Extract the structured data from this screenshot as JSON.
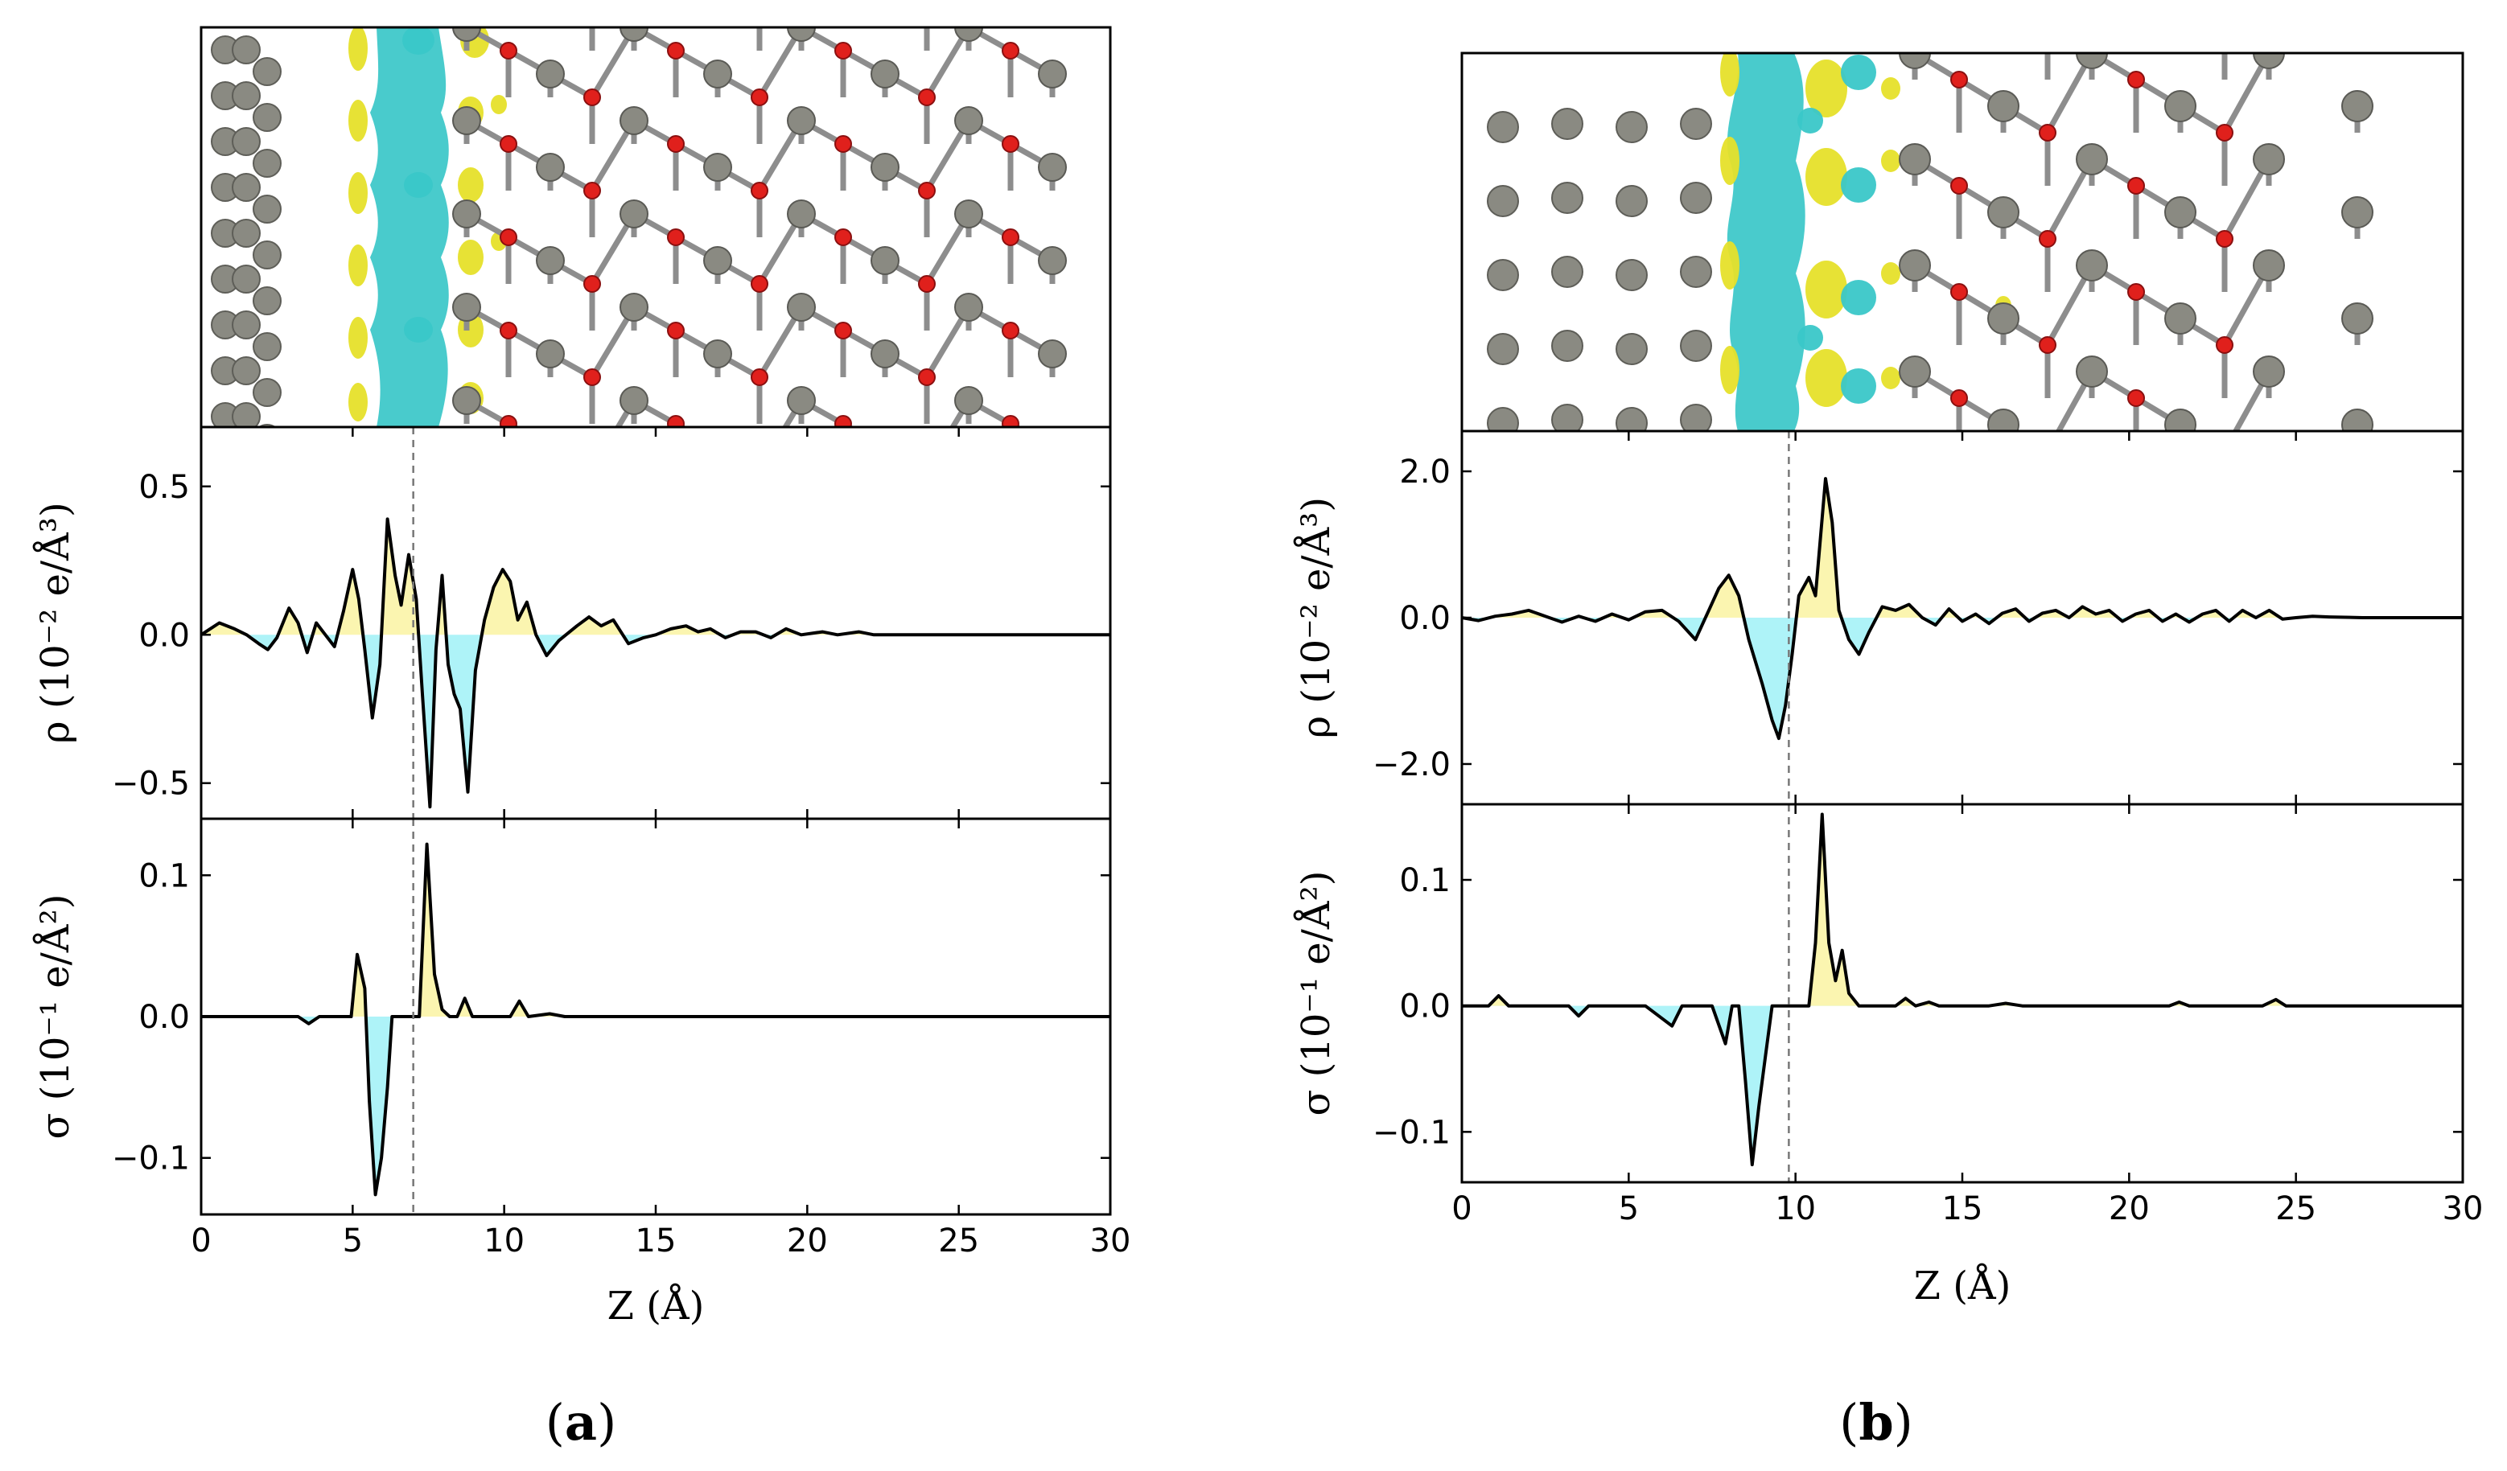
{
  "figure": {
    "panel_labels": [
      {
        "prefix": "(",
        "letter": "a",
        "suffix": ")"
      },
      {
        "prefix": "(",
        "letter": "b",
        "suffix": ")"
      }
    ]
  },
  "colors": {
    "line": "#000000",
    "positive_fill": "#fbf5b0",
    "negative_fill": "#aef3f8",
    "isosurface_cyan": "#3ac7c8",
    "isosurface_yellow": "#e6e02a",
    "atom_gray": "#8a8a82",
    "atom_red": "#e0201c",
    "bond_gray": "#8d8d8d",
    "dashed_line": "#777777"
  },
  "chart_data": [
    {
      "id": "a-rho",
      "type": "area",
      "panel": "a",
      "xlabel": "Z (Å)",
      "ylabel": "ρ (10⁻² e/Å³)",
      "xlim": [
        0,
        30
      ],
      "ylim": [
        -0.62,
        0.7
      ],
      "xticks": [
        0,
        5,
        10,
        15,
        20,
        25,
        30
      ],
      "yticks": [
        0.5,
        0.0,
        -0.5
      ],
      "ytick_labels": [
        "0.5",
        "0.0",
        "−0.5"
      ],
      "interface_z": 7.0,
      "points": [
        [
          0,
          0.0
        ],
        [
          0.6,
          0.04
        ],
        [
          1.1,
          0.02
        ],
        [
          1.5,
          0.0
        ],
        [
          1.9,
          -0.03
        ],
        [
          2.2,
          -0.05
        ],
        [
          2.5,
          -0.01
        ],
        [
          2.9,
          0.09
        ],
        [
          3.2,
          0.04
        ],
        [
          3.5,
          -0.06
        ],
        [
          3.8,
          0.04
        ],
        [
          4.1,
          0.0
        ],
        [
          4.4,
          -0.04
        ],
        [
          4.7,
          0.08
        ],
        [
          5.0,
          0.22
        ],
        [
          5.2,
          0.12
        ],
        [
          5.4,
          -0.05
        ],
        [
          5.65,
          -0.28
        ],
        [
          5.9,
          -0.1
        ],
        [
          6.15,
          0.39
        ],
        [
          6.4,
          0.2
        ],
        [
          6.6,
          0.1
        ],
        [
          6.85,
          0.27
        ],
        [
          7.1,
          0.12
        ],
        [
          7.3,
          -0.2
        ],
        [
          7.55,
          -0.58
        ],
        [
          7.75,
          -0.05
        ],
        [
          7.95,
          0.2
        ],
        [
          8.15,
          -0.1
        ],
        [
          8.35,
          -0.2
        ],
        [
          8.55,
          -0.25
        ],
        [
          8.8,
          -0.53
        ],
        [
          9.05,
          -0.12
        ],
        [
          9.35,
          0.05
        ],
        [
          9.65,
          0.16
        ],
        [
          9.95,
          0.22
        ],
        [
          10.2,
          0.18
        ],
        [
          10.45,
          0.05
        ],
        [
          10.75,
          0.11
        ],
        [
          11.05,
          0.0
        ],
        [
          11.4,
          -0.07
        ],
        [
          11.8,
          -0.02
        ],
        [
          12.4,
          0.03
        ],
        [
          12.8,
          0.06
        ],
        [
          13.2,
          0.03
        ],
        [
          13.6,
          0.05
        ],
        [
          14.1,
          -0.03
        ],
        [
          14.6,
          -0.01
        ],
        [
          15.0,
          0.0
        ],
        [
          15.5,
          0.02
        ],
        [
          16.0,
          0.03
        ],
        [
          16.4,
          0.01
        ],
        [
          16.8,
          0.02
        ],
        [
          17.3,
          -0.01
        ],
        [
          17.8,
          0.01
        ],
        [
          18.3,
          0.01
        ],
        [
          18.8,
          -0.01
        ],
        [
          19.3,
          0.02
        ],
        [
          19.8,
          0.0
        ],
        [
          20.5,
          0.01
        ],
        [
          21.0,
          0.0
        ],
        [
          21.7,
          0.01
        ],
        [
          22.2,
          0.0
        ],
        [
          23.0,
          0.0
        ],
        [
          24.0,
          0.0
        ],
        [
          25.0,
          0.0
        ],
        [
          26.0,
          0.0
        ],
        [
          27.0,
          0.0
        ],
        [
          28.0,
          0.0
        ],
        [
          29.0,
          0.0
        ],
        [
          30.0,
          0.0
        ]
      ]
    },
    {
      "id": "a-sigma",
      "type": "area",
      "panel": "a",
      "xlabel": "Z (Å)",
      "ylabel": "σ (10⁻¹ e/Å²)",
      "xlim": [
        0,
        30
      ],
      "ylim": [
        -0.14,
        0.14
      ],
      "xticks": [
        0,
        5,
        10,
        15,
        20,
        25,
        30
      ],
      "xtick_labels": [
        "0",
        "5",
        "10",
        "15",
        "20",
        "25",
        "30"
      ],
      "yticks": [
        0.1,
        0.0,
        -0.1
      ],
      "ytick_labels": [
        "0.1",
        "0.0",
        "−0.1"
      ],
      "interface_z": 7.0,
      "points": [
        [
          0,
          0.0
        ],
        [
          1.0,
          0.0
        ],
        [
          2.0,
          0.0
        ],
        [
          3.2,
          0.0
        ],
        [
          3.55,
          -0.005
        ],
        [
          3.9,
          0.0
        ],
        [
          4.6,
          0.0
        ],
        [
          4.95,
          0.0
        ],
        [
          5.15,
          0.044
        ],
        [
          5.4,
          0.02
        ],
        [
          5.55,
          -0.06
        ],
        [
          5.75,
          -0.126
        ],
        [
          5.95,
          -0.1
        ],
        [
          6.15,
          -0.05
        ],
        [
          6.3,
          0.0
        ],
        [
          7.0,
          0.0
        ],
        [
          7.2,
          0.0
        ],
        [
          7.45,
          0.122
        ],
        [
          7.7,
          0.03
        ],
        [
          7.95,
          0.005
        ],
        [
          8.2,
          0.0
        ],
        [
          8.45,
          0.0
        ],
        [
          8.7,
          0.013
        ],
        [
          8.95,
          0.0
        ],
        [
          10.2,
          0.0
        ],
        [
          10.5,
          0.011
        ],
        [
          10.8,
          0.0
        ],
        [
          11.5,
          0.002
        ],
        [
          12.0,
          0.0
        ],
        [
          30,
          0.0
        ]
      ]
    },
    {
      "id": "b-rho",
      "type": "area",
      "panel": "b",
      "xlabel": "Z (Å)",
      "ylabel": "ρ (10⁻² e/Å³)",
      "xlim": [
        0,
        30
      ],
      "ylim": [
        -2.55,
        2.55
      ],
      "xticks": [
        0,
        5,
        10,
        15,
        20,
        25,
        30
      ],
      "yticks": [
        2.0,
        0.0,
        -2.0
      ],
      "ytick_labels": [
        "2.0",
        "0.0",
        "−2.0"
      ],
      "interface_z": 9.8,
      "points": [
        [
          0,
          0.0
        ],
        [
          0.5,
          -0.04
        ],
        [
          1.0,
          0.02
        ],
        [
          1.5,
          0.05
        ],
        [
          2.0,
          0.1
        ],
        [
          2.5,
          0.02
        ],
        [
          3.0,
          -0.06
        ],
        [
          3.5,
          0.02
        ],
        [
          4.0,
          -0.05
        ],
        [
          4.5,
          0.05
        ],
        [
          5.0,
          -0.03
        ],
        [
          5.5,
          0.08
        ],
        [
          6.0,
          0.1
        ],
        [
          6.5,
          -0.05
        ],
        [
          7.0,
          -0.3
        ],
        [
          7.4,
          0.1
        ],
        [
          7.7,
          0.4
        ],
        [
          8.0,
          0.58
        ],
        [
          8.3,
          0.3
        ],
        [
          8.6,
          -0.3
        ],
        [
          9.0,
          -0.9
        ],
        [
          9.3,
          -1.4
        ],
        [
          9.5,
          -1.65
        ],
        [
          9.7,
          -1.2
        ],
        [
          9.9,
          -0.5
        ],
        [
          10.1,
          0.3
        ],
        [
          10.4,
          0.55
        ],
        [
          10.6,
          0.3
        ],
        [
          10.9,
          1.9
        ],
        [
          11.1,
          1.3
        ],
        [
          11.3,
          0.1
        ],
        [
          11.6,
          -0.3
        ],
        [
          11.9,
          -0.5
        ],
        [
          12.2,
          -0.2
        ],
        [
          12.6,
          0.15
        ],
        [
          13.0,
          0.1
        ],
        [
          13.4,
          0.18
        ],
        [
          13.8,
          0.0
        ],
        [
          14.2,
          -0.1
        ],
        [
          14.6,
          0.12
        ],
        [
          15.0,
          -0.05
        ],
        [
          15.4,
          0.05
        ],
        [
          15.8,
          -0.08
        ],
        [
          16.2,
          0.06
        ],
        [
          16.6,
          0.12
        ],
        [
          17.0,
          -0.05
        ],
        [
          17.4,
          0.06
        ],
        [
          17.8,
          0.1
        ],
        [
          18.2,
          0.0
        ],
        [
          18.6,
          0.15
        ],
        [
          19.0,
          0.05
        ],
        [
          19.4,
          0.1
        ],
        [
          19.8,
          -0.05
        ],
        [
          20.2,
          0.05
        ],
        [
          20.6,
          0.1
        ],
        [
          21.0,
          -0.05
        ],
        [
          21.4,
          0.05
        ],
        [
          21.8,
          -0.06
        ],
        [
          22.2,
          0.05
        ],
        [
          22.6,
          0.1
        ],
        [
          23.0,
          -0.05
        ],
        [
          23.4,
          0.1
        ],
        [
          23.8,
          0.0
        ],
        [
          24.2,
          0.1
        ],
        [
          24.6,
          -0.02
        ],
        [
          25.0,
          0.0
        ],
        [
          25.5,
          0.02
        ],
        [
          26.0,
          0.01
        ],
        [
          27.0,
          0.0
        ],
        [
          28.0,
          0.0
        ],
        [
          29.0,
          0.0
        ],
        [
          30.0,
          0.0
        ]
      ]
    },
    {
      "id": "b-sigma",
      "type": "area",
      "panel": "b",
      "xlabel": "Z (Å)",
      "ylabel": "σ (10⁻¹ e/Å²)",
      "xlim": [
        0,
        30
      ],
      "ylim": [
        -0.14,
        0.16
      ],
      "xticks": [
        0,
        5,
        10,
        15,
        20,
        25,
        30
      ],
      "xtick_labels": [
        "0",
        "5",
        "10",
        "15",
        "20",
        "25",
        "30"
      ],
      "yticks": [
        0.1,
        0.0,
        -0.1
      ],
      "ytick_labels": [
        "0.1",
        "0.0",
        "−0.1"
      ],
      "interface_z": 9.8,
      "points": [
        [
          0,
          0.0
        ],
        [
          0.8,
          0.0
        ],
        [
          1.1,
          0.008
        ],
        [
          1.4,
          0.0
        ],
        [
          3.2,
          0.0
        ],
        [
          3.5,
          -0.008
        ],
        [
          3.8,
          0.0
        ],
        [
          5.5,
          0.0
        ],
        [
          6.0,
          -0.01
        ],
        [
          6.3,
          -0.016
        ],
        [
          6.6,
          0.0
        ],
        [
          7.5,
          0.0
        ],
        [
          7.9,
          -0.03
        ],
        [
          8.1,
          0.0
        ],
        [
          8.3,
          0.0
        ],
        [
          8.5,
          -0.06
        ],
        [
          8.7,
          -0.126
        ],
        [
          8.9,
          -0.08
        ],
        [
          9.1,
          -0.04
        ],
        [
          9.3,
          0.0
        ],
        [
          10.4,
          0.0
        ],
        [
          10.6,
          0.05
        ],
        [
          10.8,
          0.152
        ],
        [
          11.0,
          0.05
        ],
        [
          11.2,
          0.02
        ],
        [
          11.4,
          0.044
        ],
        [
          11.6,
          0.01
        ],
        [
          11.9,
          0.0
        ],
        [
          13.0,
          0.0
        ],
        [
          13.3,
          0.006
        ],
        [
          13.6,
          0.0
        ],
        [
          14.0,
          0.003
        ],
        [
          14.3,
          0.0
        ],
        [
          15.8,
          0.0
        ],
        [
          16.3,
          0.002
        ],
        [
          16.8,
          0.0
        ],
        [
          21.2,
          0.0
        ],
        [
          21.5,
          0.003
        ],
        [
          21.8,
          0.0
        ],
        [
          24.0,
          0.0
        ],
        [
          24.4,
          0.005
        ],
        [
          24.7,
          0.0
        ],
        [
          30,
          0.0
        ]
      ]
    }
  ]
}
